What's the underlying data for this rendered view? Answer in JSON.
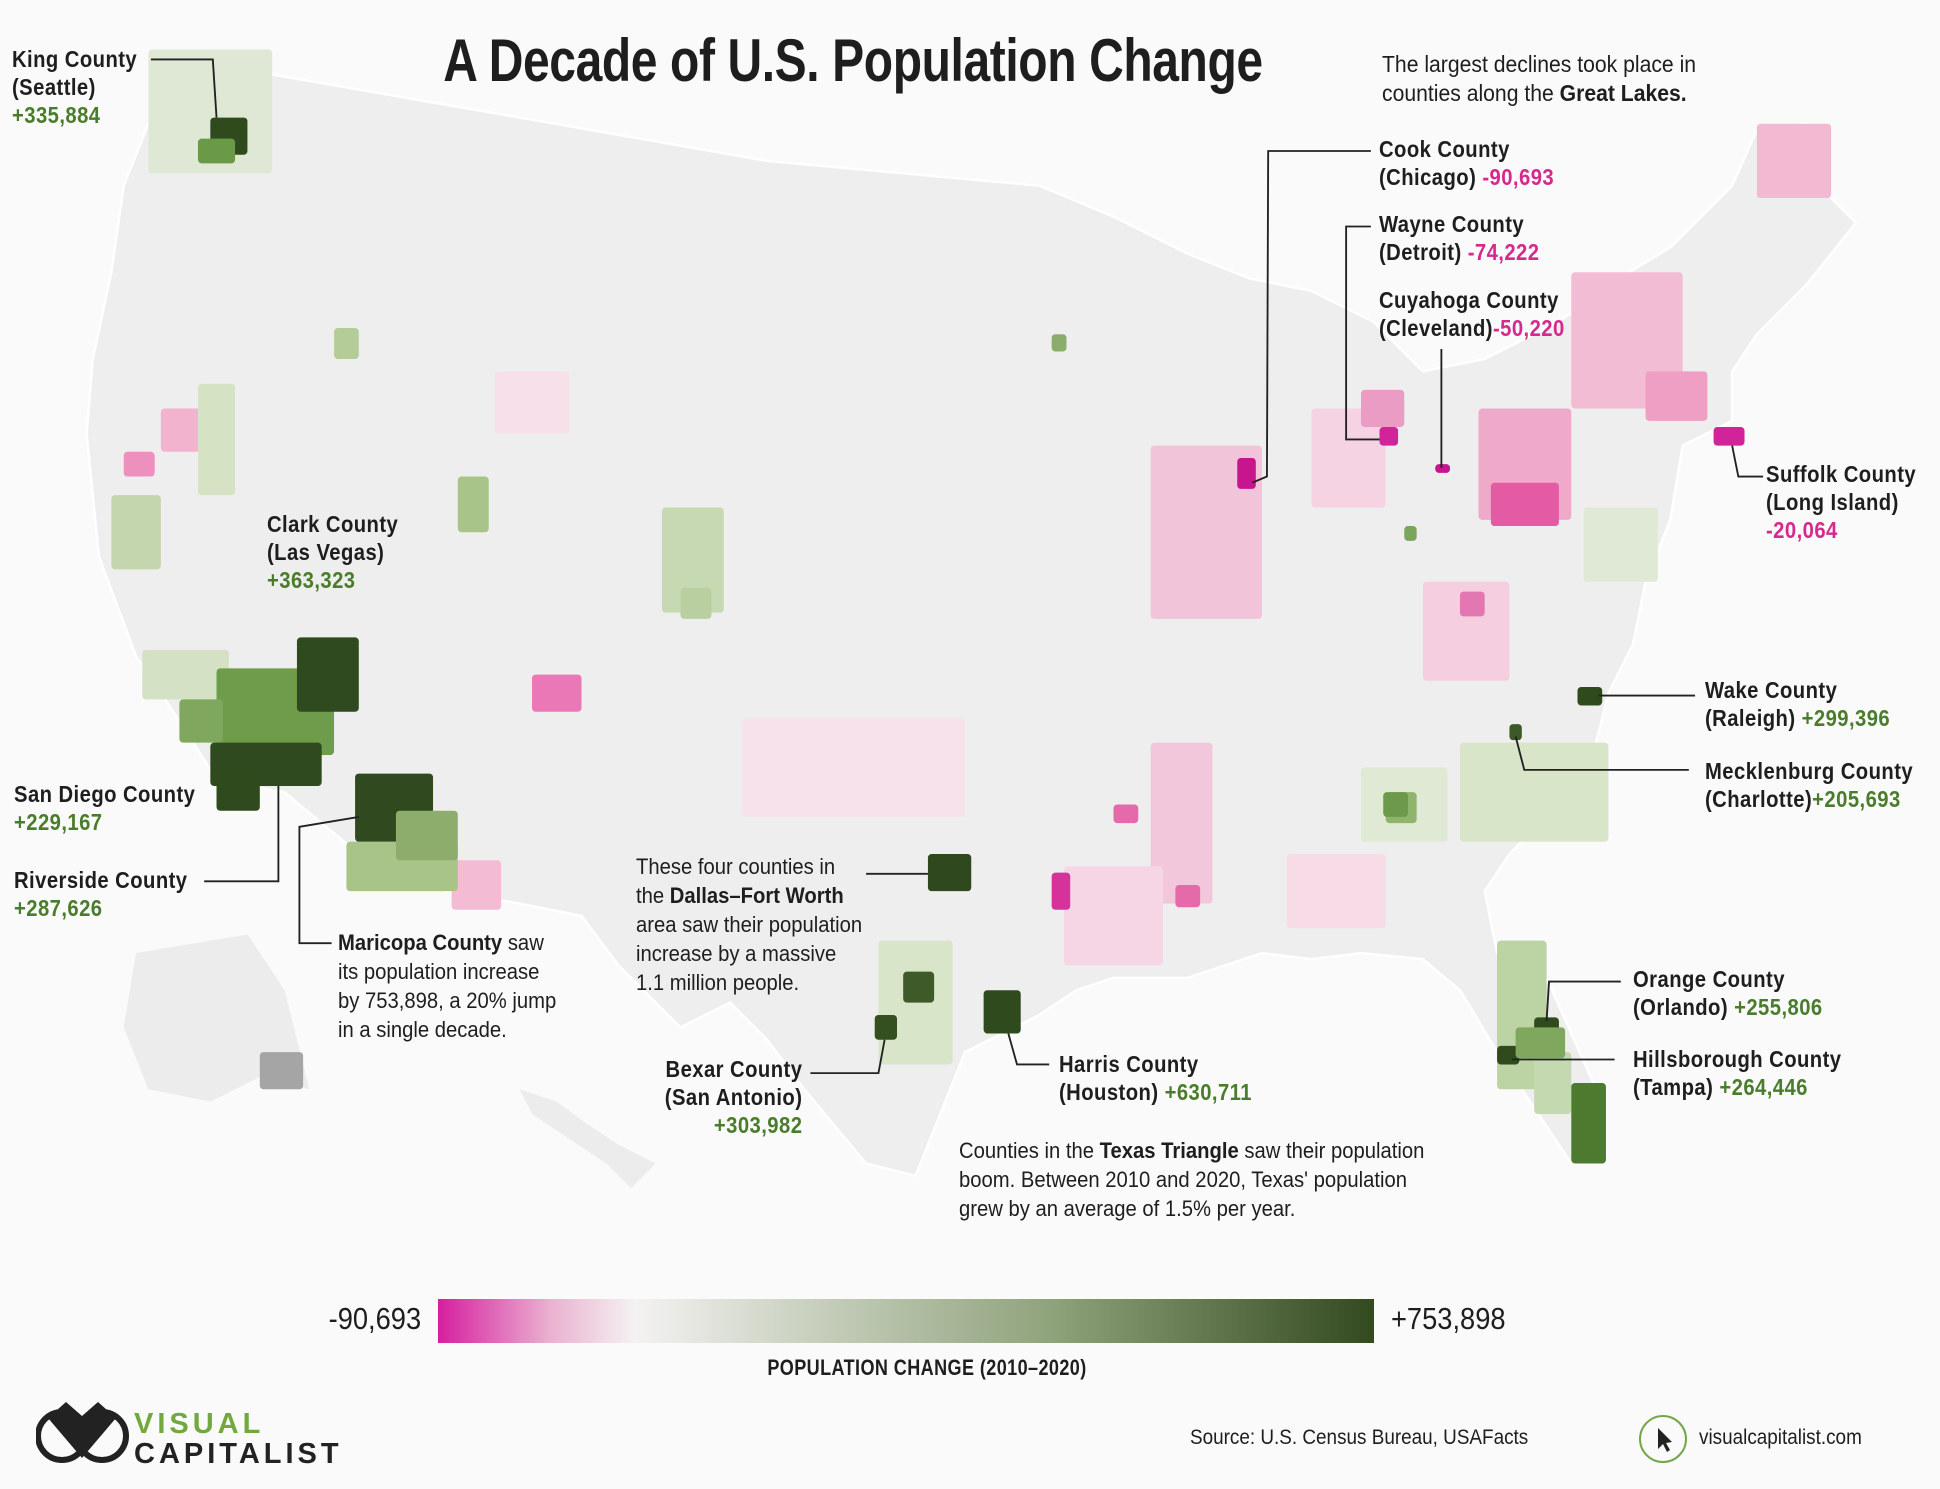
{
  "title": "A Decade of U.S. Population Change",
  "great_lakes_note": {
    "line1": "The largest declines took place in",
    "line2_pre": "counties along the ",
    "line2_bold": "Great Lakes."
  },
  "callouts": {
    "king": {
      "name": "King County",
      "city": "(Seattle)",
      "value": "+335,884"
    },
    "clark": {
      "name": "Clark County",
      "city": "(Las Vegas)",
      "value": "+363,323"
    },
    "san_diego": {
      "name": "San Diego County",
      "value": "+229,167"
    },
    "riverside": {
      "name": "Riverside County",
      "value": "+287,626"
    },
    "cook": {
      "name": "Cook County",
      "city": "(Chicago)",
      "value": "-90,693"
    },
    "wayne": {
      "name": "Wayne County",
      "city": "(Detroit)",
      "value": "-74,222"
    },
    "cuyahoga": {
      "name": "Cuyahoga County",
      "city": "(Cleveland)",
      "value": "-50,220"
    },
    "suffolk": {
      "name": "Suffolk County",
      "city": "(Long Island)",
      "value": "-20,064"
    },
    "wake": {
      "name": "Wake County",
      "city": "(Raleigh)",
      "value": "+299,396"
    },
    "mecklenburg": {
      "name": "Mecklenburg County",
      "city": "(Charlotte)",
      "value": "+205,693"
    },
    "orange": {
      "name": "Orange County",
      "city": "(Orlando)",
      "value": "+255,806"
    },
    "hillsborough": {
      "name": "Hillsborough County",
      "city": "(Tampa)",
      "value": "+264,446"
    },
    "harris": {
      "name": "Harris County",
      "city": "(Houston)",
      "value": "+630,711"
    },
    "bexar": {
      "name": "Bexar County",
      "city": "(San Antonio)",
      "value": "+303,982"
    }
  },
  "maricopa_note": {
    "bold": "Maricopa County",
    "l1": " saw",
    "l2": "its population increase",
    "l3": "by 753,898, a 20% jump",
    "l4": "in a single decade."
  },
  "dallas_note": {
    "l1": "These four counties in",
    "l2_pre": "the ",
    "l2_bold": "Dallas–Fort Worth",
    "l3": "area saw their population",
    "l4": "increase by a massive",
    "l5": "1.1 million people."
  },
  "texas_note": {
    "l1_pre": "Counties in the ",
    "l1_bold": "Texas Triangle",
    "l1_post": " saw their population",
    "l2": "boom. Between 2010 and 2020, Texas' population",
    "l3": "grew by an average of 1.5% per year."
  },
  "legend": {
    "min": "-90,693",
    "max": "+753,898",
    "title": "POPULATION CHANGE (2010–2020)",
    "colors": {
      "min": "#d61fa0",
      "mid": "#f4f2f2",
      "max": "#33491f"
    }
  },
  "footer": {
    "logo_line1": "VISUAL",
    "logo_line2": "CAPITALIST",
    "source": "Source: U.S. Census Bureau, USAFacts",
    "site": "visualcapitalist.com",
    "site_icon": "cursor-icon"
  },
  "colors": {
    "positive": "#4a7d2b",
    "negative": "#d42a8e"
  }
}
